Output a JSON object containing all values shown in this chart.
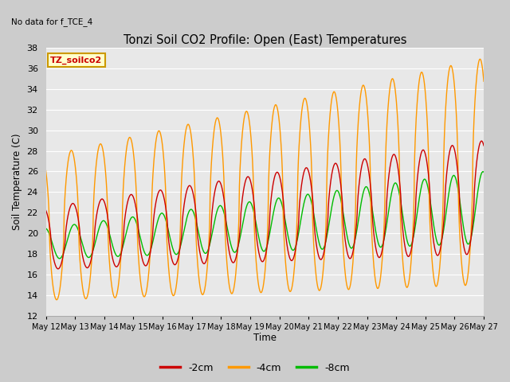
{
  "title": "Tonzi Soil CO2 Profile: Open (East) Temperatures",
  "subtitle": "No data for f_TCE_4",
  "ylabel": "Soil Temperature (C)",
  "xlabel": "Time",
  "legend_label": "TZ_soilco2",
  "series_labels": [
    "-2cm",
    "-4cm",
    "-8cm"
  ],
  "series_colors": [
    "#cc0000",
    "#ff9900",
    "#00bb00"
  ],
  "ylim": [
    12,
    38
  ],
  "yticks": [
    12,
    14,
    16,
    18,
    20,
    22,
    24,
    26,
    28,
    30,
    32,
    34,
    36,
    38
  ],
  "xmin": 12,
  "xmax": 27,
  "fig_bg": "#cccccc",
  "plot_bg": "#e8e8e8",
  "grid_color": "#ffffff"
}
